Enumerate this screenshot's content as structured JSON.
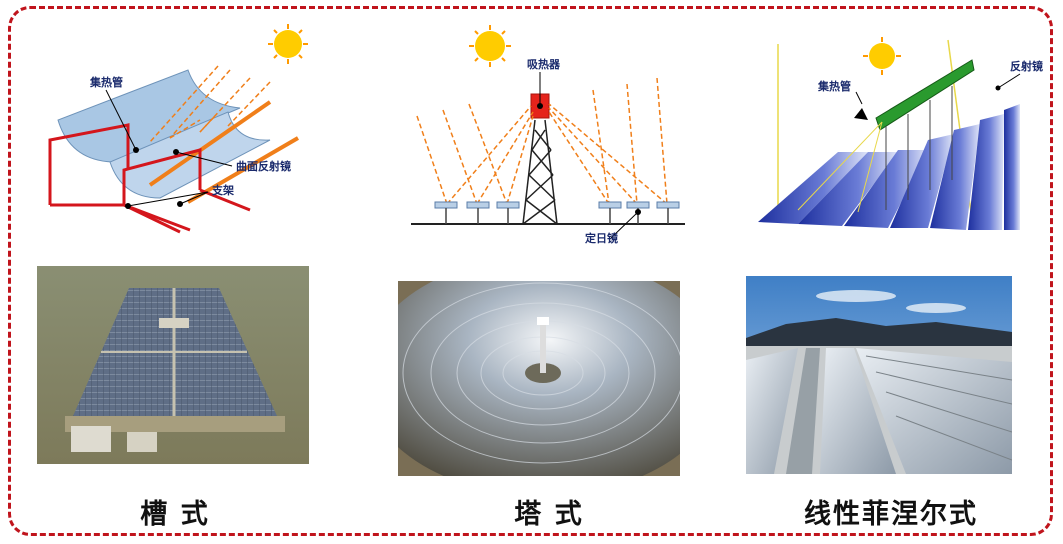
{
  "colors": {
    "frame": "#c0141c",
    "sun": "#ffcc00",
    "ray": "#f07f1a",
    "support": "#d4161c",
    "fresnel_mirror": "#2b3fb0"
  },
  "panels": [
    {
      "caption": "槽 式",
      "diagram_labels": {
        "tube": "集热管",
        "mirror": "曲面反射镜",
        "support": "支架"
      }
    },
    {
      "caption": "塔 式",
      "diagram_labels": {
        "receiver": "吸热器",
        "heliostat": "定日镜"
      }
    },
    {
      "caption": "线性菲涅尔式",
      "diagram_labels": {
        "tube": "集热管",
        "mirror": "反射镜"
      }
    }
  ]
}
